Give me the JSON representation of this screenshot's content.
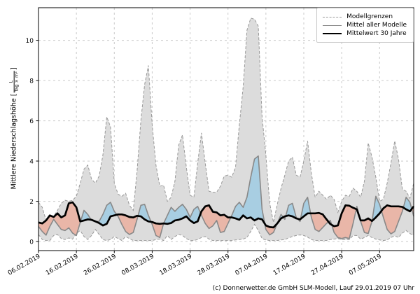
{
  "footer": "(c) Donnerwetter.de GmbH SLM-Modell, Lauf 29.01.2019 07 Uhr",
  "y_axis_label": {
    "prefix": "Mittlere Niederschlagshöhe [",
    "frac_numerator": "L",
    "frac_denominator": "Tag × m²",
    "suffix": "]"
  },
  "legend": {
    "items": [
      {
        "label": "Modellgrenzen",
        "style": "dashed-gray"
      },
      {
        "label": "Mittel aller Modelle",
        "style": "solid-gray"
      },
      {
        "label": "Mittelwert 30 Jahre",
        "style": "solid-black-thick"
      }
    ]
  },
  "chart_data": {
    "type": "area",
    "title": "",
    "xlabel": "",
    "ylabel": "Mittlere Niederschlagshöhe [L/(Tag × m²)]",
    "x_start_date": "06.02.2019",
    "x_step_days": 1,
    "x_tick_days": [
      0,
      10,
      20,
      30,
      40,
      50,
      60,
      70,
      80,
      90
    ],
    "x_tick_labels": [
      "06.02.2019",
      "16.02.2019",
      "26.02.2019",
      "08.03.2019",
      "18.03.2019",
      "28.03.2019",
      "07.04.2019",
      "17.04.2019",
      "27.04.2019",
      "07.05.2019"
    ],
    "y_ticks": [
      0,
      2,
      4,
      6,
      8,
      10
    ],
    "ylim": [
      -0.45,
      11.62
    ],
    "grid": true,
    "legend_position": "top-right",
    "colors": {
      "band_fill": "#dcdcdc",
      "band_edge": "#999999",
      "above_fill": "#a8cee2",
      "below_fill": "#e9b6a8",
      "model_mean_line": "#888888",
      "mean30_line": "#000000",
      "grid_line": "#c9c9c9",
      "spine": "#000000"
    },
    "series": [
      {
        "name": "Modellgrenzen (oberes Band)",
        "role": "band_max",
        "values": [
          1.95,
          1.7,
          1.05,
          1.0,
          1.25,
          1.55,
          1.9,
          2.05,
          2.0,
          2.05,
          2.25,
          2.9,
          3.6,
          3.8,
          3.1,
          2.9,
          3.25,
          4.3,
          6.2,
          5.7,
          2.9,
          2.35,
          2.25,
          2.4,
          1.8,
          1.55,
          3.5,
          6.0,
          7.8,
          8.75,
          5.8,
          3.8,
          2.75,
          2.8,
          2.0,
          2.2,
          3.0,
          4.8,
          5.3,
          3.7,
          2.3,
          2.2,
          3.9,
          5.4,
          3.9,
          2.5,
          2.45,
          2.45,
          2.75,
          3.25,
          3.3,
          3.2,
          3.7,
          5.8,
          7.7,
          10.5,
          11.1,
          11.05,
          10.7,
          6.2,
          4.3,
          1.9,
          0.95,
          1.85,
          2.65,
          3.3,
          4.0,
          4.2,
          3.3,
          3.2,
          4.0,
          5.0,
          3.4,
          2.2,
          2.5,
          2.3,
          2.1,
          2.3,
          2.1,
          1.45,
          2.0,
          2.3,
          2.25,
          2.65,
          2.5,
          2.2,
          3.0,
          4.9,
          4.2,
          3.2,
          2.0,
          2.1,
          2.9,
          3.9,
          5.0,
          4.1,
          2.6,
          2.5,
          2.15,
          2.9
        ]
      },
      {
        "name": "Modellgrenzen (unteres Band)",
        "role": "band_min",
        "values": [
          0.35,
          0.1,
          0.05,
          0.05,
          0.3,
          0.35,
          0.15,
          0.1,
          0.18,
          0.12,
          0.4,
          0.55,
          0.25,
          0.1,
          0.3,
          0.6,
          0.35,
          0.1,
          0.05,
          0.1,
          0.25,
          0.15,
          0.05,
          0.25,
          0.15,
          0.05,
          0.05,
          0.05,
          0.05,
          0.05,
          0.05,
          0.1,
          0.12,
          0.05,
          0.3,
          0.1,
          0.25,
          0.35,
          0.3,
          0.15,
          0.05,
          0.05,
          0.1,
          0.2,
          0.25,
          0.12,
          0.05,
          0.05,
          0.05,
          0.05,
          0.05,
          0.05,
          0.08,
          0.1,
          0.12,
          0.2,
          0.5,
          0.85,
          0.55,
          0.15,
          0.08,
          0.05,
          0.05,
          0.05,
          0.08,
          0.1,
          0.18,
          0.25,
          0.3,
          0.33,
          0.3,
          0.22,
          0.1,
          0.05,
          0.05,
          0.05,
          0.05,
          0.1,
          0.12,
          0.15,
          0.1,
          0.1,
          0.1,
          0.3,
          0.3,
          0.12,
          0.2,
          0.3,
          0.2,
          0.12,
          0.08,
          0.05,
          0.08,
          0.2,
          0.28,
          0.2,
          0.42,
          0.55,
          0.4,
          0.3
        ]
      },
      {
        "name": "Mittel aller Modelle",
        "role": "model_mean",
        "values": [
          0.75,
          0.5,
          0.32,
          0.75,
          1.1,
          0.85,
          0.6,
          0.55,
          0.68,
          0.42,
          0.3,
          0.95,
          1.55,
          1.35,
          1.05,
          1.0,
          1.0,
          1.35,
          1.8,
          1.95,
          1.5,
          1.25,
          0.85,
          0.5,
          0.35,
          0.45,
          1.1,
          1.8,
          1.85,
          1.3,
          0.85,
          0.3,
          0.2,
          0.9,
          1.3,
          1.7,
          1.5,
          1.7,
          1.85,
          1.6,
          1.2,
          1.6,
          1.75,
          1.3,
          0.9,
          0.65,
          0.78,
          1.05,
          0.45,
          0.5,
          0.9,
          1.3,
          1.75,
          1.95,
          1.7,
          2.2,
          3.2,
          4.1,
          4.25,
          1.6,
          0.6,
          0.33,
          0.45,
          0.9,
          1.35,
          1.1,
          1.8,
          1.9,
          1.2,
          1.0,
          1.9,
          2.2,
          1.2,
          0.6,
          0.5,
          0.7,
          0.9,
          1.05,
          0.45,
          0.2,
          0.15,
          0.2,
          0.15,
          0.9,
          1.75,
          1.0,
          0.45,
          0.4,
          1.0,
          2.25,
          1.85,
          1.2,
          0.6,
          0.38,
          0.5,
          1.0,
          1.5,
          2.2,
          1.95,
          1.25
        ]
      },
      {
        "name": "Mittelwert 30 Jahre",
        "role": "mean30",
        "values": [
          0.95,
          0.9,
          1.05,
          1.3,
          1.22,
          1.4,
          1.2,
          1.3,
          1.9,
          1.95,
          1.7,
          1.0,
          1.05,
          1.1,
          1.08,
          1.0,
          0.92,
          0.8,
          0.88,
          1.25,
          1.3,
          1.35,
          1.35,
          1.3,
          1.22,
          1.2,
          1.28,
          1.25,
          1.1,
          1.0,
          0.97,
          0.9,
          0.88,
          0.9,
          0.88,
          0.92,
          1.05,
          1.08,
          1.15,
          1.25,
          1.05,
          0.92,
          1.0,
          1.5,
          1.75,
          1.8,
          1.48,
          1.45,
          1.3,
          1.33,
          1.2,
          1.2,
          1.15,
          1.08,
          1.3,
          1.15,
          1.2,
          1.05,
          1.15,
          1.1,
          0.8,
          0.72,
          0.7,
          0.9,
          1.15,
          1.25,
          1.3,
          1.25,
          1.15,
          1.1,
          1.25,
          1.4,
          1.4,
          1.4,
          1.42,
          1.35,
          1.1,
          0.87,
          0.76,
          0.8,
          1.4,
          1.8,
          1.78,
          1.68,
          1.6,
          1.05,
          1.05,
          1.15,
          1.02,
          1.2,
          1.4,
          1.65,
          1.8,
          1.75,
          1.75,
          1.75,
          1.72,
          1.6,
          1.5,
          1.75
        ]
      }
    ]
  }
}
